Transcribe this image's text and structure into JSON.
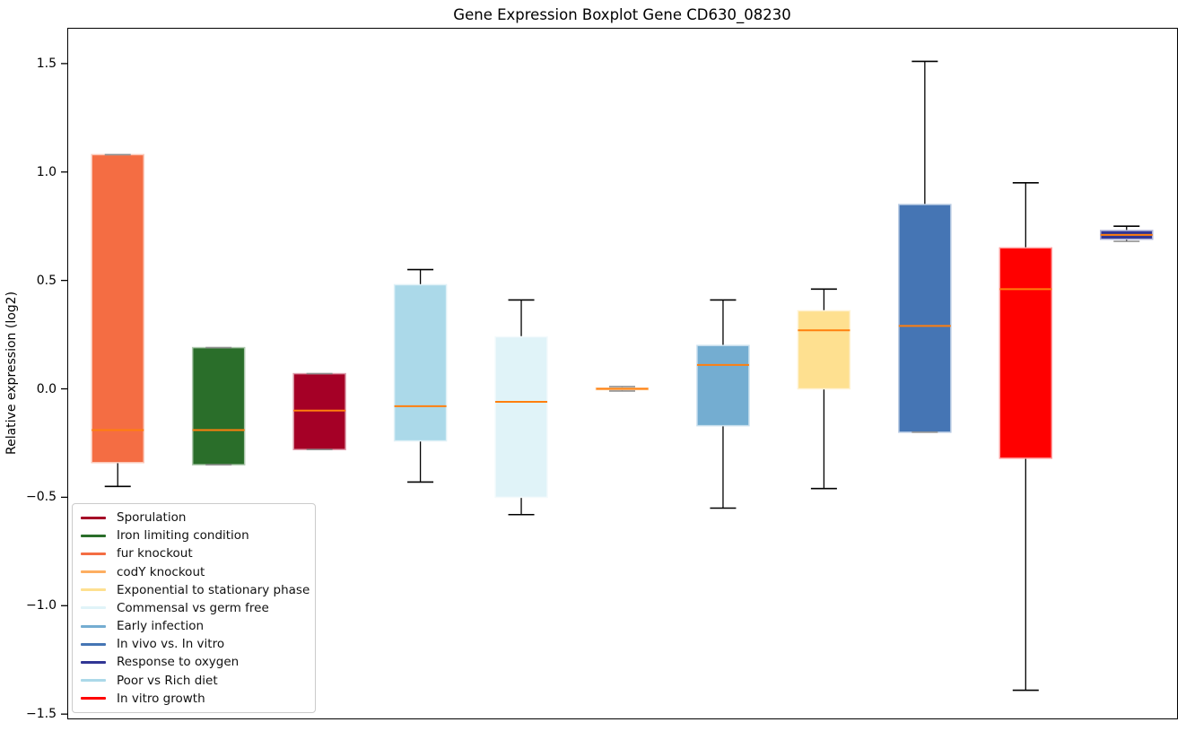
{
  "chart_data": {
    "type": "boxplot",
    "title": "Gene Expression Boxplot Gene CD630_08230",
    "ylabel": "Relative expression (log2)",
    "xlabel": "",
    "ylim": [
      -1.52,
      1.665
    ],
    "grid": false,
    "median_color": "#ff7f0e",
    "whisker_color": "#000000",
    "coincident_cap_color": "#8f8f8f",
    "yticks": [
      {
        "value": 1.5,
        "label": "1.5"
      },
      {
        "value": 1.0,
        "label": "1.0"
      },
      {
        "value": 0.5,
        "label": "0.5"
      },
      {
        "value": 0.0,
        "label": "0.0"
      },
      {
        "value": -0.5,
        "label": "−0.5"
      },
      {
        "value": -1.0,
        "label": "−1.0"
      },
      {
        "value": -1.5,
        "label": "−1.5"
      }
    ],
    "series": [
      {
        "name": "fur knockout",
        "color": "#f46d43",
        "min": -0.45,
        "q1": -0.34,
        "median": -0.19,
        "q3": 1.08,
        "max": 1.08
      },
      {
        "name": "Iron limiting condition",
        "color": "#2a6e2a",
        "min": -0.35,
        "q1": -0.35,
        "median": -0.19,
        "q3": 0.19,
        "max": 0.19
      },
      {
        "name": "Sporulation",
        "color": "#a50026",
        "min": -0.28,
        "q1": -0.28,
        "median": -0.1,
        "q3": 0.07,
        "max": 0.07
      },
      {
        "name": "Poor vs Rich diet",
        "color": "#abd9e9",
        "min": -0.43,
        "q1": -0.24,
        "median": -0.08,
        "q3": 0.48,
        "max": 0.55
      },
      {
        "name": "Commensal vs germ free",
        "color": "#e0f3f8",
        "min": -0.58,
        "q1": -0.5,
        "median": -0.06,
        "q3": 0.24,
        "max": 0.41
      },
      {
        "name": "codY knockout",
        "color": "#fdae61",
        "min": -0.01,
        "q1": -0.004,
        "median": 0.0,
        "q3": 0.004,
        "max": 0.01
      },
      {
        "name": "Early infection",
        "color": "#74add1",
        "min": -0.55,
        "q1": -0.17,
        "median": 0.11,
        "q3": 0.2,
        "max": 0.41
      },
      {
        "name": "Exponential to stationary phase",
        "color": "#fee090",
        "min": -0.46,
        "q1": 0.0,
        "median": 0.27,
        "q3": 0.36,
        "max": 0.46
      },
      {
        "name": "In vivo vs. In vitro",
        "color": "#4575b4",
        "min": -0.2,
        "q1": -0.2,
        "median": 0.29,
        "q3": 0.85,
        "max": 1.51
      },
      {
        "name": "In vitro growth",
        "color": "#ff0000",
        "min": -1.39,
        "q1": -0.32,
        "median": 0.46,
        "q3": 0.65,
        "max": 0.95
      },
      {
        "name": "Response to oxygen",
        "color": "#313695",
        "min": 0.68,
        "q1": 0.69,
        "median": 0.71,
        "q3": 0.73,
        "max": 0.75
      }
    ],
    "legend": {
      "position": "lower left",
      "items": [
        {
          "label": "Sporulation",
          "color": "#a50026"
        },
        {
          "label": "Iron limiting condition",
          "color": "#2a6e2a"
        },
        {
          "label": "fur knockout",
          "color": "#f46d43"
        },
        {
          "label": "codY knockout",
          "color": "#fdae61"
        },
        {
          "label": "Exponential to stationary phase",
          "color": "#fee090"
        },
        {
          "label": "Commensal vs germ free",
          "color": "#e0f3f8"
        },
        {
          "label": "Early infection",
          "color": "#74add1"
        },
        {
          "label": "In vivo vs. In vitro",
          "color": "#4575b4"
        },
        {
          "label": "Response to oxygen",
          "color": "#313695"
        },
        {
          "label": "Poor vs Rich diet",
          "color": "#abd9e9"
        },
        {
          "label": "In vitro growth",
          "color": "#ff0000"
        }
      ]
    }
  }
}
